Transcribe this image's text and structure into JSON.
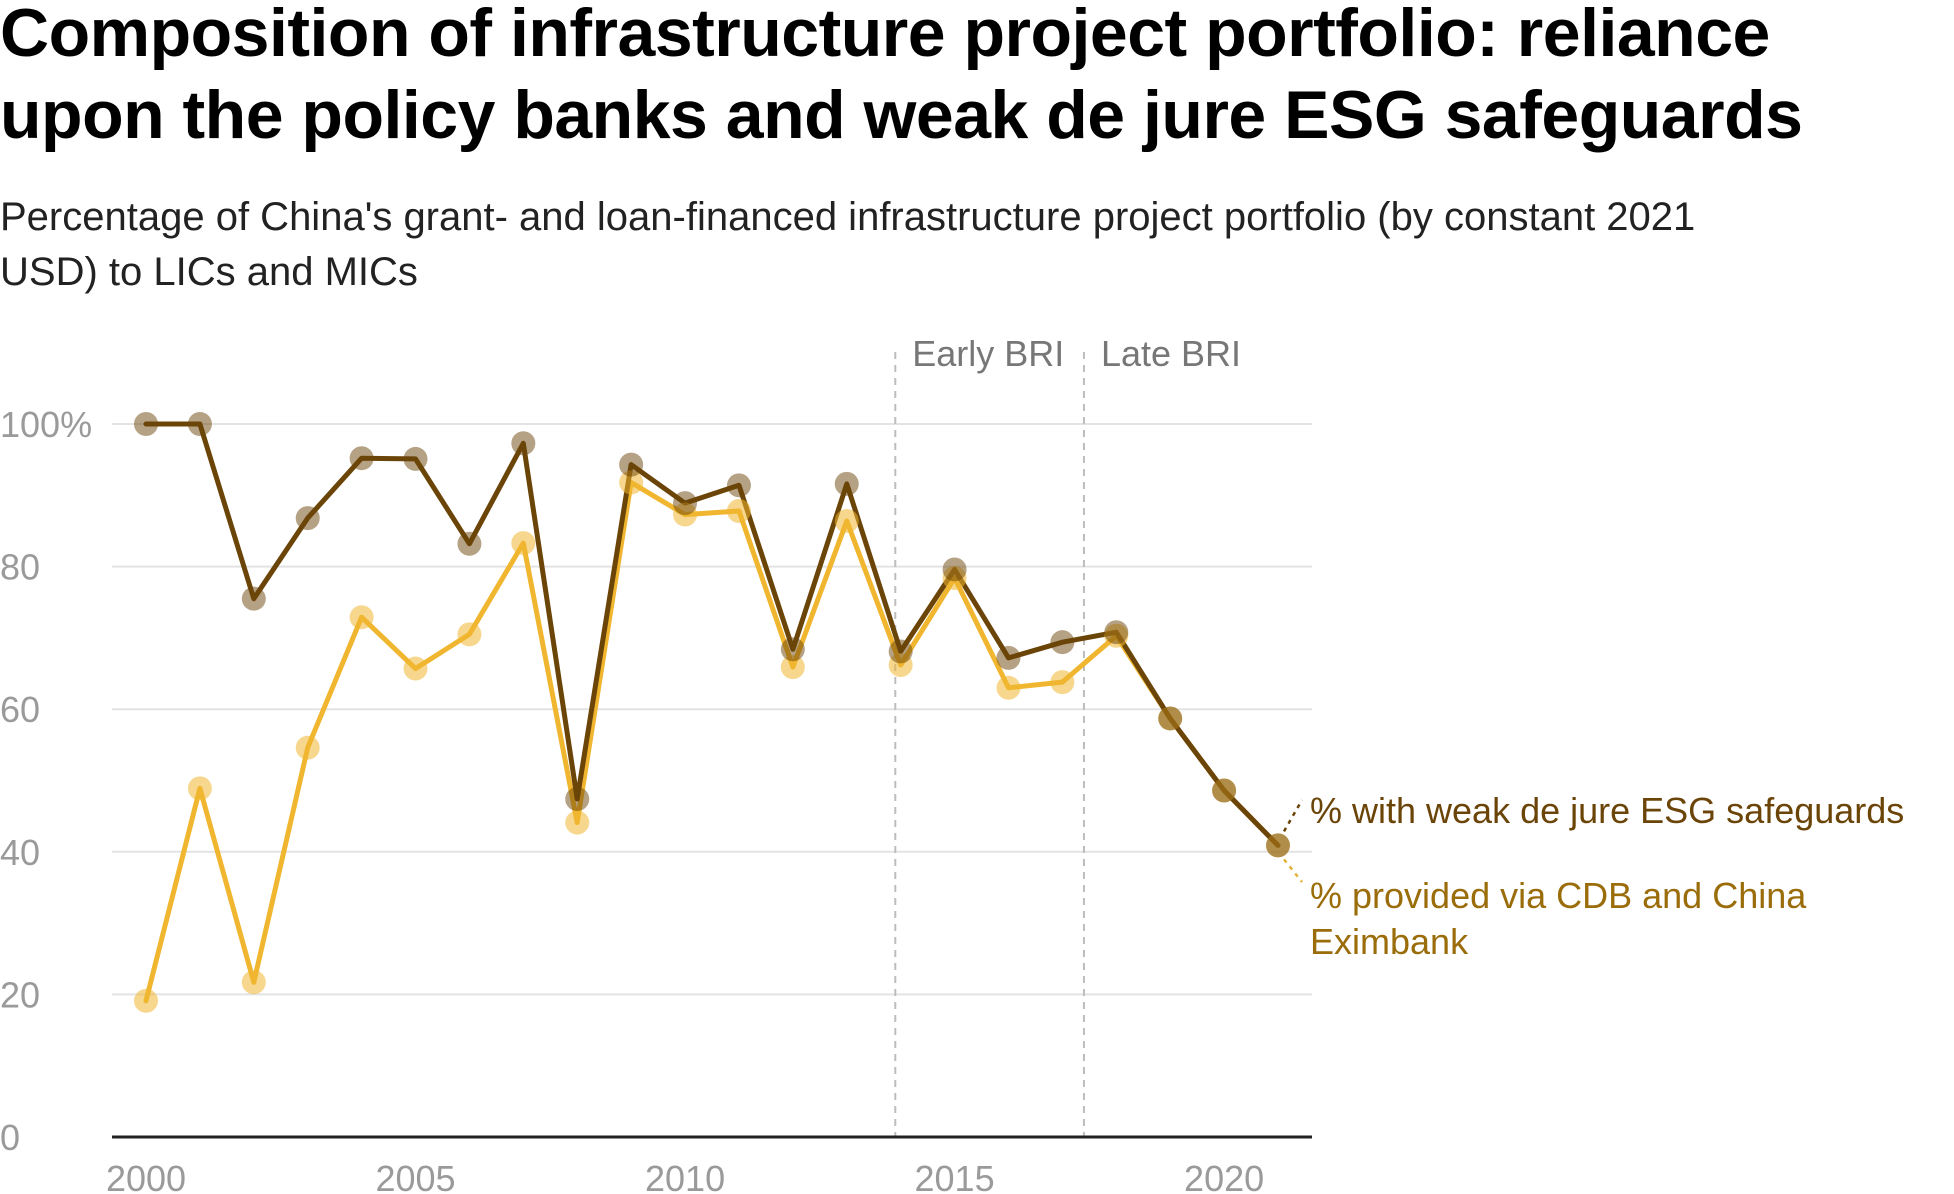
{
  "title_line1": "Composition of infrastructure project portfolio: reliance",
  "title_line2": "upon the policy banks and weak de jure ESG safeguards",
  "subtitle_line1": "Percentage of China's grant- and loan-financed infrastructure project portfolio (by constant 2021",
  "subtitle_line2": "USD) to LICs and MICs",
  "chart_data": {
    "type": "line",
    "x": [
      2000,
      2001,
      2002,
      2003,
      2004,
      2005,
      2006,
      2007,
      2008,
      2009,
      2010,
      2011,
      2012,
      2013,
      2014,
      2015,
      2016,
      2017,
      2018,
      2019,
      2020,
      2021
    ],
    "series": [
      {
        "name": "% with weak de jure ESG safeguards",
        "name_lines": [
          "% with weak de jure ESG safeguards"
        ],
        "color": "#6b4408",
        "values": [
          100,
          100,
          75.5,
          86.8,
          95.2,
          95.1,
          83.2,
          97.3,
          47.4,
          94.3,
          88.9,
          91.4,
          68.4,
          91.6,
          68.1,
          79.6,
          67.2,
          69.4,
          70.8,
          58.7,
          48.6,
          40.9
        ]
      },
      {
        "name": "% provided via CDB and China Eximbank",
        "name_lines": [
          "% provided via CDB and China",
          "Eximbank"
        ],
        "color": "#f0b62f",
        "values": [
          19.1,
          48.9,
          21.7,
          54.6,
          72.9,
          65.7,
          70.5,
          83.3,
          44.1,
          91.8,
          87.3,
          87.8,
          65.9,
          86.4,
          66.2,
          78.4,
          63.0,
          63.8,
          70.3,
          58.7,
          48.6,
          40.9
        ]
      }
    ],
    "xticks": [
      2000,
      2005,
      2010,
      2015,
      2020
    ],
    "yticks": [
      0,
      20,
      40,
      60,
      80,
      100
    ],
    "ytick_labels": [
      "0",
      "20",
      "40",
      "60",
      "80",
      "100%"
    ],
    "xlim": [
      2000,
      2021
    ],
    "ylim": [
      0,
      100
    ],
    "grid": true,
    "periods": [
      {
        "label": "Early BRI",
        "start": 2013.9,
        "end": 2017.4
      },
      {
        "label": "Late BRI",
        "start": 2017.4
      }
    ],
    "legend": "direct labels at right end of lines"
  }
}
